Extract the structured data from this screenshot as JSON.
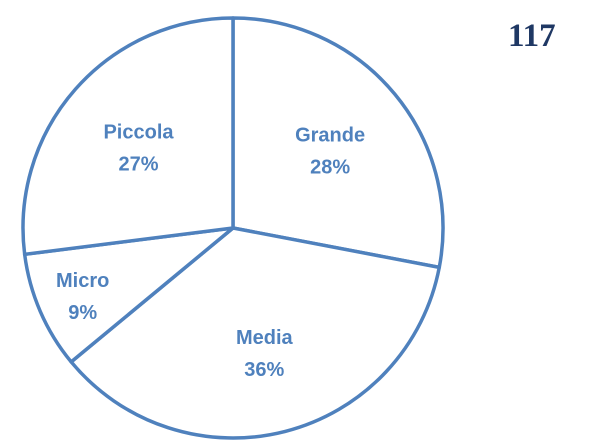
{
  "page_number": "117",
  "chart_data": {
    "type": "pie",
    "title": "",
    "slices": [
      {
        "label": "Grande",
        "value": 28,
        "value_label": "28%"
      },
      {
        "label": "Media",
        "value": 36,
        "value_label": "36%"
      },
      {
        "label": "Micro",
        "value": 9,
        "value_label": "9%"
      },
      {
        "label": "Piccola",
        "value": 27,
        "value_label": "27%"
      }
    ],
    "colors": {
      "stroke": "#4f81bd",
      "fill": "#ffffff",
      "label": "#4f81bd"
    },
    "legend": "none"
  }
}
